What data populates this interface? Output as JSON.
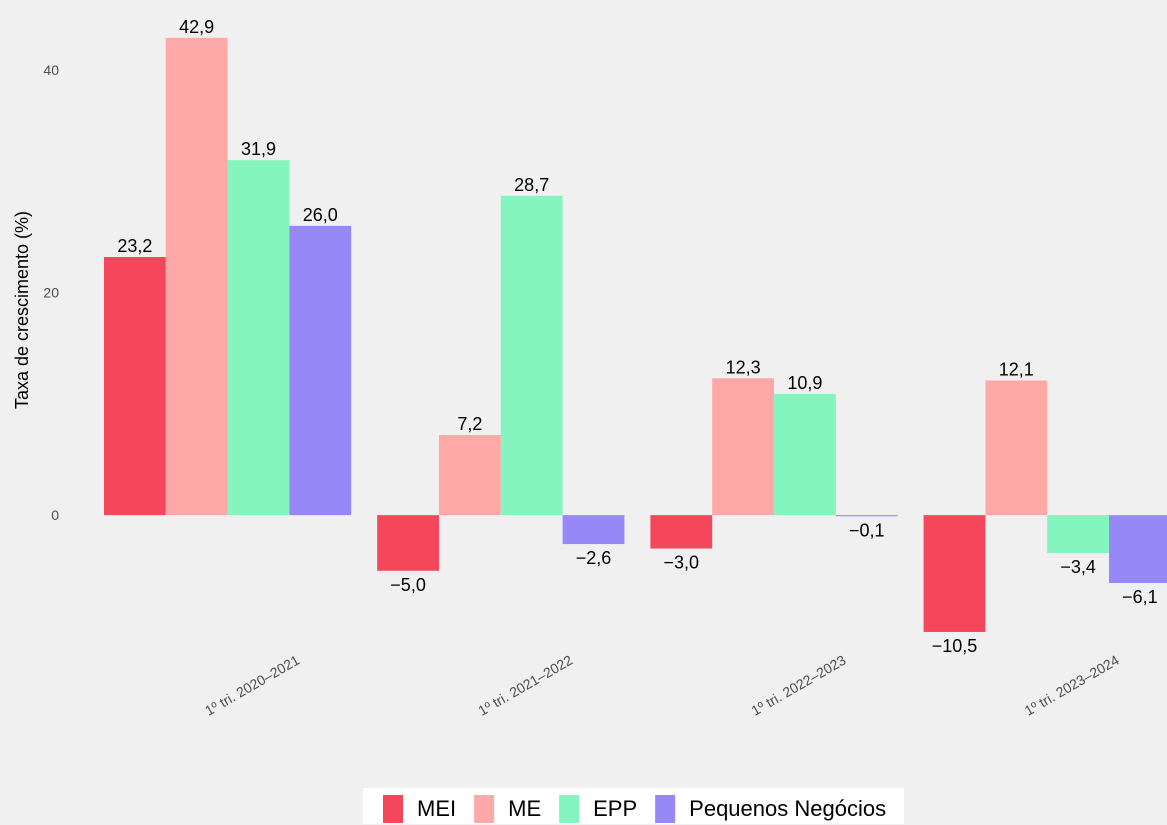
{
  "chart_data": {
    "type": "bar",
    "y_label": "Taxa de crescimento (%)",
    "categories": [
      "1º tri. 2020–2021",
      "1º tri. 2021–2022",
      "1º tri. 2022–2023",
      "1º tri. 2023–2024"
    ],
    "series": [
      {
        "name": "MEI",
        "color": "#f5475c",
        "values": [
          23.2,
          -5.0,
          -3.0,
          -10.5
        ],
        "value_labels": [
          "23,2",
          "−5,0",
          "−3,0",
          "−10,5"
        ]
      },
      {
        "name": "ME",
        "color": "#ffa8a8",
        "values": [
          42.9,
          7.2,
          12.3,
          12.1
        ],
        "value_labels": [
          "42,9",
          "7,2",
          "12,3",
          "12,1"
        ]
      },
      {
        "name": "EPP",
        "color": "#85f5bf",
        "values": [
          31.9,
          28.7,
          10.9,
          -3.4
        ],
        "value_labels": [
          "31,9",
          "28,7",
          "10,9",
          "−3,4"
        ]
      },
      {
        "name": "Pequenos Negócios",
        "color": "#9688f7",
        "values": [
          26.0,
          -2.6,
          -0.1,
          -6.1
        ],
        "value_labels": [
          "26,0",
          "−2,6",
          "−0,1",
          "−6,1"
        ]
      }
    ],
    "ylim": [
      -12.3,
      44.5
    ],
    "yticks": [
      0,
      20,
      40
    ],
    "grid": false,
    "legend": "bottom"
  }
}
